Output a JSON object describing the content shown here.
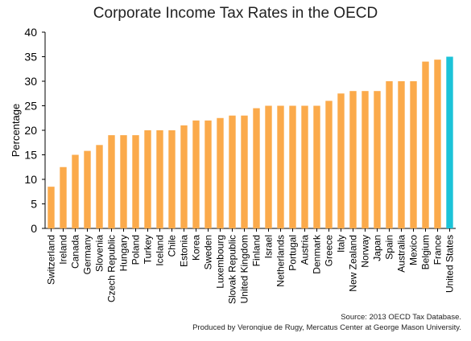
{
  "chart_data": {
    "type": "bar",
    "title": "Corporate Income Tax Rates in the OECD",
    "xlabel": "",
    "ylabel": "Percentage",
    "ylim": [
      0,
      40
    ],
    "yticks": [
      0,
      5,
      10,
      15,
      20,
      25,
      30,
      35,
      40
    ],
    "grid": false,
    "categories": [
      "Switzerland",
      "Ireland",
      "Canada",
      "Germany",
      "Slovenia",
      "Czech Republic",
      "Hungary",
      "Poland",
      "Turkey",
      "Iceland",
      "Chile",
      "Estonia",
      "Korea",
      "Sweden",
      "Luxembourg",
      "Slovak Republic",
      "United Kingdom",
      "Finland",
      "Israel",
      "Netherlands",
      "Portugal",
      "Austria",
      "Denmark",
      "Greece",
      "Italy",
      "New Zealand",
      "Norway",
      "Japan",
      "Spain",
      "Australia",
      "Mexico",
      "Belgium",
      "France",
      "United States"
    ],
    "values": [
      8.5,
      12.5,
      15,
      15.8,
      17,
      19,
      19,
      19,
      20,
      20,
      20,
      21,
      22,
      22,
      22.5,
      23,
      23,
      24.5,
      25,
      25,
      25,
      25,
      25,
      26,
      27.5,
      28,
      28,
      28,
      30,
      30,
      30,
      34,
      34.4,
      35
    ],
    "colors": {
      "default": "#FBAA4B",
      "highlight": "#1CC3D8",
      "highlight_category": "United States"
    }
  },
  "source": {
    "line1": "Source: 2013 OECD Tax Database.",
    "line2": "Produced by Veronqiue de Rugy, Mercatus Center at George Mason University."
  }
}
